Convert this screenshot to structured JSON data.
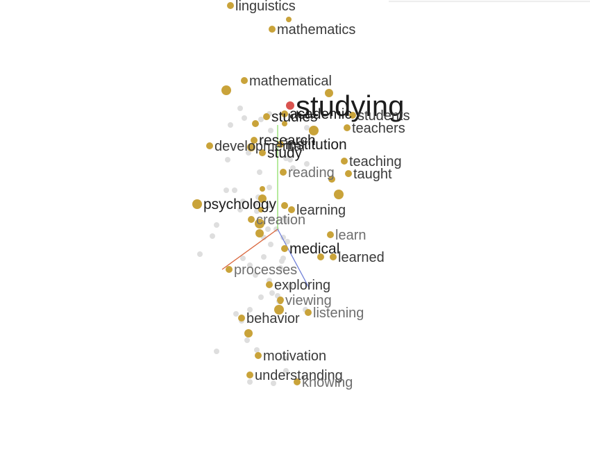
{
  "colors": {
    "highlight_point": "#d9534f",
    "neighbor_point": "#c9a33a",
    "background_point": "#dedede",
    "axis_x": "#d9653b",
    "axis_y": "#8fe06a",
    "axis_z": "#6f7fd8",
    "label_strong": "#1c1c1c",
    "label_mid": "#3a3a3a",
    "label_light": "#6e6e6e"
  },
  "chart_data": {
    "type": "scatter",
    "title": "",
    "projection": "3d",
    "xlabel": "",
    "ylabel": "",
    "grid": false,
    "legend": "none",
    "selected_word": "studying",
    "labeled_points": [
      {
        "word": "studying",
        "x": 0.09,
        "y": 0.89,
        "emphasis": "selected"
      },
      {
        "word": "linguistics",
        "x": -0.34,
        "y": 1.61,
        "emphasis": "mid"
      },
      {
        "word": "mathematics",
        "x": -0.04,
        "y": 1.44,
        "emphasis": "mid"
      },
      {
        "word": "mathematical",
        "x": -0.24,
        "y": 1.07,
        "emphasis": "mid"
      },
      {
        "word": "students",
        "x": 0.54,
        "y": 0.82,
        "emphasis": "mid"
      },
      {
        "word": "teachers",
        "x": 0.5,
        "y": 0.73,
        "emphasis": "mid"
      },
      {
        "word": "studies",
        "x": -0.08,
        "y": 0.81,
        "emphasis": "strong"
      },
      {
        "word": "academic",
        "x": 0.05,
        "y": 0.83,
        "emphasis": "strong"
      },
      {
        "word": "research",
        "x": -0.17,
        "y": 0.64,
        "emphasis": "strong"
      },
      {
        "word": "developmental",
        "x": -0.49,
        "y": 0.6,
        "emphasis": "mid"
      },
      {
        "word": "study",
        "x": -0.11,
        "y": 0.55,
        "emphasis": "strong"
      },
      {
        "word": "institution",
        "x": 0.02,
        "y": 0.61,
        "emphasis": "strong"
      },
      {
        "word": "teaching",
        "x": 0.48,
        "y": 0.49,
        "emphasis": "mid"
      },
      {
        "word": "taught",
        "x": 0.51,
        "y": 0.4,
        "emphasis": "mid"
      },
      {
        "word": "reading",
        "x": 0.04,
        "y": 0.41,
        "emphasis": "light"
      },
      {
        "word": "psychology",
        "x": -0.58,
        "y": 0.18,
        "emphasis": "strong"
      },
      {
        "word": "learning",
        "x": 0.1,
        "y": 0.14,
        "emphasis": "mid"
      },
      {
        "word": "creation",
        "x": -0.19,
        "y": 0.07,
        "emphasis": "light"
      },
      {
        "word": "learn",
        "x": 0.38,
        "y": -0.04,
        "emphasis": "light"
      },
      {
        "word": "medical",
        "x": 0.05,
        "y": -0.14,
        "emphasis": "strong"
      },
      {
        "word": "learned",
        "x": 0.4,
        "y": -0.2,
        "emphasis": "mid"
      },
      {
        "word": "processes",
        "x": -0.35,
        "y": -0.29,
        "emphasis": "light"
      },
      {
        "word": "exploring",
        "x": -0.06,
        "y": -0.4,
        "emphasis": "mid"
      },
      {
        "word": "viewing",
        "x": 0.02,
        "y": -0.51,
        "emphasis": "light"
      },
      {
        "word": "listening",
        "x": 0.22,
        "y": -0.6,
        "emphasis": "light"
      },
      {
        "word": "behavior",
        "x": -0.26,
        "y": -0.64,
        "emphasis": "mid"
      },
      {
        "word": "motivation",
        "x": -0.14,
        "y": -0.91,
        "emphasis": "mid"
      },
      {
        "word": "understanding",
        "x": -0.2,
        "y": -1.05,
        "emphasis": "mid"
      },
      {
        "word": "knowing",
        "x": 0.14,
        "y": -1.1,
        "emphasis": "light"
      }
    ],
    "unlabeled_neighbor_points": [
      [
        0.08,
        1.51
      ],
      [
        -0.37,
        1.0
      ],
      [
        0.37,
        0.98
      ],
      [
        -0.16,
        0.76
      ],
      [
        0.05,
        0.76
      ],
      [
        0.26,
        0.71
      ],
      [
        -0.19,
        0.59
      ],
      [
        0.39,
        0.36
      ],
      [
        -0.11,
        0.29
      ],
      [
        0.44,
        0.25
      ],
      [
        -0.11,
        0.22
      ],
      [
        0.05,
        0.17
      ],
      [
        -0.12,
        0.14
      ],
      [
        -0.13,
        0.04
      ],
      [
        -0.13,
        -0.03
      ],
      [
        0.31,
        -0.2
      ],
      [
        0.02,
        -0.52
      ],
      [
        0.01,
        -0.58
      ],
      [
        -0.21,
        -0.75
      ]
    ],
    "background_points": [
      [
        0.17,
        1.08
      ],
      [
        -0.27,
        0.87
      ],
      [
        -0.24,
        0.8
      ],
      [
        -0.34,
        0.75
      ],
      [
        -0.06,
        0.83
      ],
      [
        -0.12,
        0.79
      ],
      [
        -0.05,
        0.71
      ],
      [
        0.17,
        0.64
      ],
      [
        0.21,
        0.73
      ],
      [
        0.06,
        0.51
      ],
      [
        -0.21,
        0.55
      ],
      [
        0.21,
        0.47
      ],
      [
        -0.36,
        0.5
      ],
      [
        0.09,
        0.5
      ],
      [
        -0.13,
        0.41
      ],
      [
        -0.37,
        0.28
      ],
      [
        -0.31,
        0.28
      ],
      [
        -0.14,
        0.23
      ],
      [
        -0.06,
        0.3
      ],
      [
        -0.16,
        0.18
      ],
      [
        -0.06,
        0.17
      ],
      [
        -0.27,
        0.14
      ],
      [
        -0.15,
        0.13
      ],
      [
        -0.25,
        0.2
      ],
      [
        -0.04,
        0.07
      ],
      [
        0.05,
        0.08
      ],
      [
        0.06,
        0.06
      ],
      [
        -0.44,
        0.03
      ],
      [
        -0.07,
        0.0
      ],
      [
        -0.01,
        0.0
      ],
      [
        -0.1,
        -0.06
      ],
      [
        0.04,
        -0.06
      ],
      [
        0.07,
        -0.09
      ],
      [
        -0.05,
        -0.11
      ],
      [
        -0.1,
        -0.2
      ],
      [
        -0.25,
        -0.21
      ],
      [
        0.04,
        -0.21
      ],
      [
        0.03,
        -0.23
      ],
      [
        -0.2,
        -0.26
      ],
      [
        -0.16,
        -0.33
      ],
      [
        -0.06,
        -0.37
      ],
      [
        0.09,
        -0.41
      ],
      [
        -0.12,
        -0.49
      ],
      [
        -0.04,
        -0.46
      ],
      [
        0.0,
        -0.48
      ],
      [
        0.01,
        -0.52
      ],
      [
        0.2,
        -0.58
      ],
      [
        -0.2,
        -0.58
      ],
      [
        -0.3,
        -0.61
      ],
      [
        -0.26,
        -0.66
      ],
      [
        -0.22,
        -0.8
      ],
      [
        -0.44,
        -0.88
      ],
      [
        -0.15,
        -0.87
      ],
      [
        -0.2,
        -1.1
      ],
      [
        -0.03,
        -1.11
      ],
      [
        0.05,
        -0.93
      ],
      [
        0.06,
        -1.02
      ],
      [
        -0.56,
        -0.18
      ],
      [
        -0.47,
        -0.05
      ],
      [
        0.02,
        -0.28
      ],
      [
        0.11,
        0.44
      ]
    ],
    "axes_3d": {
      "origin": [
        0.0,
        0.0
      ],
      "x_axis_end": [
        -0.4,
        -0.29
      ],
      "y_axis_end": [
        0.0,
        0.75
      ],
      "z_axis_end": [
        0.23,
        -0.43
      ]
    }
  }
}
